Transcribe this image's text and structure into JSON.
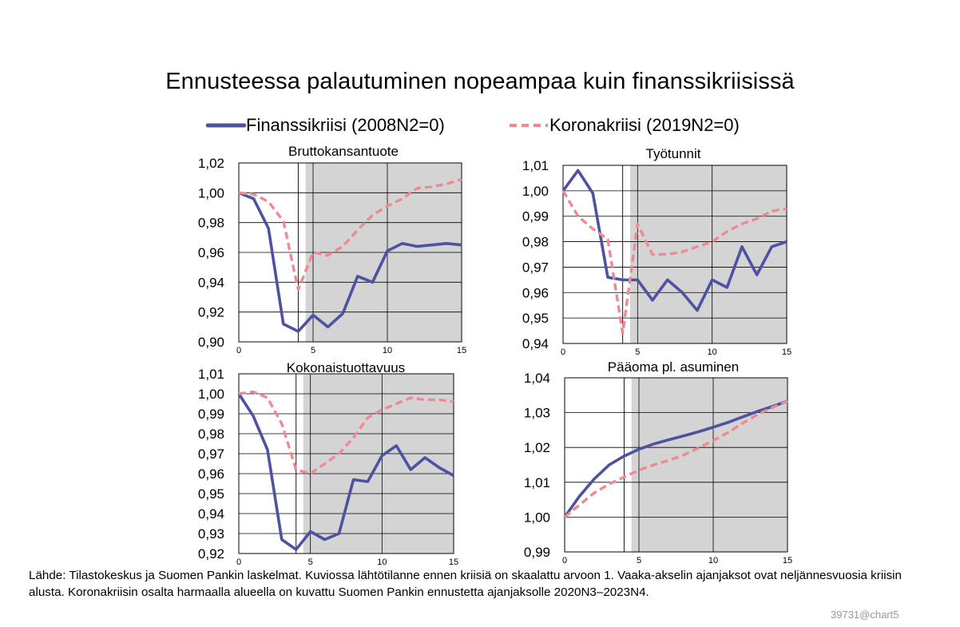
{
  "title": "Ennusteessa palautuminen nopeampaa kuin finanssikriisissä",
  "legend": {
    "finanssi": "Finanssikriisi (2008N2=0)",
    "korona": "Koronakriisi (2019N2=0)"
  },
  "colors": {
    "finanssi": "#4e52a0",
    "korona": "#ee8a93",
    "forecast_shade": "#d4d4d4",
    "grid": "#000000"
  },
  "source_note": "Lähde: Tilastokeskus ja Suomen Pankin laskelmat. Kuviossa lähtötilanne ennen kriisiä on skaalattu arvoon 1. Vaaka-akselin ajanjaksot ovat neljännesvuosia kriisin alusta. Koronakriisin osalta harmaalla alueella on kuvattu Suomen Pankin ennustetta ajanjaksolle 2020N3–2023N4.",
  "chart_id": "39731@chart5",
  "chart_data": [
    {
      "type": "line",
      "title": "Bruttokansantuote",
      "x": [
        0,
        1,
        2,
        3,
        4,
        5,
        6,
        7,
        8,
        9,
        10,
        11,
        12,
        13,
        14,
        15
      ],
      "xlim": [
        0,
        15
      ],
      "xticks": [
        0,
        5,
        10,
        15
      ],
      "xtick_labels": [
        "0",
        "5",
        "10",
        "15"
      ],
      "ylim": [
        0.9,
        1.02
      ],
      "yticks": [
        0.9,
        0.92,
        0.94,
        0.96,
        0.98,
        1.0,
        1.02
      ],
      "ytick_labels": [
        "0,90",
        "0,92",
        "0,94",
        "0,96",
        "0,98",
        "1,00",
        "1,02"
      ],
      "vline": 4,
      "forecast_start": 4.5,
      "series": [
        {
          "name": "Finanssikriisi (2008N2=0)",
          "values": [
            1.0,
            0.996,
            0.976,
            0.912,
            0.907,
            0.918,
            0.91,
            0.919,
            0.944,
            0.94,
            0.961,
            0.966,
            0.964,
            0.965,
            0.966,
            0.965
          ]
        },
        {
          "name": "Koronakriisi (2019N2=0)",
          "values": [
            1.0,
            0.999,
            0.994,
            0.981,
            0.935,
            0.96,
            0.958,
            0.964,
            0.975,
            0.985,
            0.991,
            0.996,
            1.003,
            1.004,
            1.006,
            1.009
          ]
        }
      ]
    },
    {
      "type": "line",
      "title": "Työtunnit",
      "x": [
        0,
        1,
        2,
        3,
        4,
        5,
        6,
        7,
        8,
        9,
        10,
        11,
        12,
        13,
        14,
        15
      ],
      "xlim": [
        0,
        15
      ],
      "xticks": [
        0,
        5,
        10,
        15
      ],
      "xtick_labels": [
        "0",
        "5",
        "10",
        "15"
      ],
      "ylim": [
        0.94,
        1.01
      ],
      "yticks": [
        0.94,
        0.95,
        0.96,
        0.97,
        0.98,
        0.99,
        1.0,
        1.01
      ],
      "ytick_labels": [
        "0,94",
        "0,95",
        "0,96",
        "0,97",
        "0,98",
        "0,99",
        "1,00",
        "1,01"
      ],
      "vline": 4,
      "forecast_start": 4.5,
      "series": [
        {
          "name": "Finanssikriisi (2008N2=0)",
          "values": [
            1.0,
            1.008,
            0.999,
            0.966,
            0.965,
            0.965,
            0.957,
            0.965,
            0.96,
            0.953,
            0.965,
            0.962,
            0.978,
            0.967,
            0.978,
            0.98
          ]
        },
        {
          "name": "Koronakriisi (2019N2=0)",
          "values": [
            1.0,
            0.99,
            0.985,
            0.981,
            0.944,
            0.987,
            0.975,
            0.975,
            0.976,
            0.978,
            0.98,
            0.984,
            0.987,
            0.989,
            0.992,
            0.993
          ]
        }
      ]
    },
    {
      "type": "line",
      "title": "Kokonaistuottavuus",
      "x": [
        0,
        1,
        2,
        3,
        4,
        5,
        6,
        7,
        8,
        9,
        10,
        11,
        12,
        13,
        14,
        15
      ],
      "xlim": [
        0,
        15
      ],
      "xticks": [
        0,
        5,
        10,
        15
      ],
      "xtick_labels": [
        "0",
        "5",
        "10",
        "15"
      ],
      "ylim": [
        0.92,
        1.01
      ],
      "yticks": [
        0.92,
        0.93,
        0.94,
        0.95,
        0.96,
        0.97,
        0.98,
        0.99,
        1.0,
        1.01
      ],
      "ytick_labels": [
        "0,92",
        "0,93",
        "0,94",
        "0,95",
        "0,96",
        "0,97",
        "0,98",
        "0,99",
        "1,00",
        "1,01"
      ],
      "vline": 4,
      "forecast_start": 4.5,
      "series": [
        {
          "name": "Finanssikriisi (2008N2=0)",
          "values": [
            1.0,
            0.989,
            0.972,
            0.927,
            0.922,
            0.931,
            0.927,
            0.93,
            0.957,
            0.956,
            0.969,
            0.974,
            0.962,
            0.968,
            0.963,
            0.959
          ]
        },
        {
          "name": "Koronakriisi (2019N2=0)",
          "values": [
            1.0,
            1.001,
            0.998,
            0.985,
            0.962,
            0.96,
            0.965,
            0.97,
            0.978,
            0.988,
            0.992,
            0.995,
            0.998,
            0.997,
            0.997,
            0.996
          ]
        }
      ]
    },
    {
      "type": "line",
      "title": "Pääoma pl. asuminen",
      "x": [
        0,
        1,
        2,
        3,
        4,
        5,
        6,
        7,
        8,
        9,
        10,
        11,
        12,
        13,
        14,
        15
      ],
      "xlim": [
        0,
        15
      ],
      "xticks": [
        0,
        5,
        10,
        15
      ],
      "xtick_labels": [
        "0",
        "5",
        "10",
        "15"
      ],
      "ylim": [
        0.99,
        1.04
      ],
      "yticks": [
        0.99,
        1.0,
        1.01,
        1.02,
        1.03,
        1.04
      ],
      "ytick_labels": [
        "0,99",
        "1,00",
        "1,01",
        "1,02",
        "1,03",
        "1,04"
      ],
      "vline": 4,
      "forecast_start": 4.5,
      "series": [
        {
          "name": "Finanssikriisi (2008N2=0)",
          "values": [
            1.0,
            1.006,
            1.011,
            1.015,
            1.0175,
            1.0195,
            1.021,
            1.0222,
            1.0233,
            1.0245,
            1.0258,
            1.0272,
            1.0288,
            1.0304,
            1.0318,
            1.0333
          ]
        },
        {
          "name": "Koronakriisi (2019N2=0)",
          "values": [
            1.0,
            1.0035,
            1.007,
            1.0095,
            1.0115,
            1.0135,
            1.015,
            1.0163,
            1.0178,
            1.0198,
            1.022,
            1.0243,
            1.027,
            1.0295,
            1.0315,
            1.0333
          ]
        }
      ]
    }
  ]
}
